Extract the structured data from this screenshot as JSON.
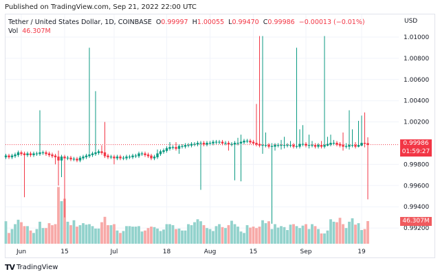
{
  "header": {
    "published": "Published on TradingView.com, Sep 21, 2022 22:00 UTC"
  },
  "legend": {
    "symbol": "Tether / United States Dollar, 1D, COINBASE",
    "o_label": "O",
    "o": "0.99997",
    "h_label": "H",
    "h": "1.00055",
    "l_label": "L",
    "l": "0.99470",
    "c_label": "C",
    "c": "0.99986",
    "change": "−0.00013 (−0.01%)",
    "vol_label": "Vol",
    "vol": "46.307M"
  },
  "price_axis": {
    "currency": "USD",
    "last_price": "0.99986",
    "countdown": "01:59:27",
    "last_volume": "46.307M"
  },
  "footer": {
    "brand": "TradingView"
  },
  "colors": {
    "up": "#089981",
    "down": "#f23645",
    "up_volume": "#92d2cc",
    "down_volume": "#f7a9a7",
    "grid": "#f0f3fa",
    "last_price_line": "#f23645"
  },
  "chart_data": {
    "type": "candlestick",
    "title": "Tether / United States Dollar, 1D, COINBASE",
    "first_date": "2022-05-27",
    "last_date": "2022-09-21",
    "ylim": [
      0.9912,
      1.0118
    ],
    "y_ticks": [
      "1.01000",
      "1.00800",
      "1.00600",
      "1.00400",
      "1.00200",
      "0.99800",
      "0.99600",
      "0.99400",
      "0.99200"
    ],
    "x_ticks": [
      {
        "label": "Jun",
        "date": "2022-06-01"
      },
      {
        "label": "15",
        "date": "2022-06-15"
      },
      {
        "label": "Jul",
        "date": "2022-07-01"
      },
      {
        "label": "18",
        "date": "2022-07-18"
      },
      {
        "label": "Aug",
        "date": "2022-08-01"
      },
      {
        "label": "15",
        "date": "2022-08-15"
      },
      {
        "label": "Sep",
        "date": "2022-09-01"
      },
      {
        "label": "19",
        "date": "2022-09-19"
      }
    ],
    "grid": true,
    "open": [
      0.9987,
      0.9988,
      0.9987,
      0.9988,
      0.9989,
      0.9991,
      0.999,
      0.9989,
      0.999,
      0.9989,
      0.999,
      0.999,
      0.9991,
      0.9991,
      0.999,
      0.9989,
      0.9988,
      0.9987,
      0.9984,
      0.9987,
      0.9986,
      0.9986,
      0.9985,
      0.9985,
      0.9984,
      0.9986,
      0.9987,
      0.9988,
      0.9989,
      0.999,
      0.9991,
      0.9992,
      0.9991,
      0.9988,
      0.9987,
      0.9987,
      0.9986,
      0.9987,
      0.9986,
      0.9986,
      0.9987,
      0.9987,
      0.9988,
      0.9988,
      0.999,
      0.999,
      0.9989,
      0.9988,
      0.9986,
      0.9987,
      0.999,
      0.9992,
      0.9993,
      0.9995,
      0.9996,
      0.9996,
      0.9995,
      0.9997,
      0.9997,
      0.9998,
      0.9998,
      0.9999,
      0.9999,
      1.0,
      1.0,
      0.9999,
      1.0,
      1.0,
      1.0001,
      1.0001,
      1.0001,
      1.0,
      1.0,
      0.9999,
      0.9999,
      1.0,
      1.0,
      1.0001,
      1.0002,
      1.0002,
      1.0001,
      1.0,
      0.9999,
      0.9998,
      0.9998,
      0.9998,
      0.9997,
      0.9997,
      0.9998,
      0.9998,
      0.9998,
      0.9998,
      0.9998,
      0.9998,
      0.9997,
      0.9997,
      0.9999,
      0.9999,
      0.9998,
      0.9998,
      0.9998,
      0.9997,
      0.9998,
      0.9997,
      0.9998,
      0.9999,
      1.0,
      1.0,
      0.9999,
      0.9998,
      0.9997,
      0.9997,
      0.9998,
      0.9998,
      0.9997,
      0.9998,
      1.0,
      0.99997
    ],
    "high": [
      0.999,
      0.999,
      0.999,
      0.9991,
      0.9993,
      0.9993,
      0.9992,
      0.9992,
      0.9992,
      0.9992,
      0.9992,
      1.0031,
      0.9993,
      0.9993,
      0.9992,
      0.9991,
      0.999,
      0.9993,
      0.9989,
      0.9989,
      0.9988,
      0.9988,
      0.9987,
      0.9987,
      0.9988,
      0.9989,
      0.999,
      1.009,
      0.9992,
      1.0049,
      0.9994,
      0.9998,
      1.002,
      0.999,
      0.9989,
      0.9989,
      0.9989,
      0.9989,
      0.9988,
      0.9989,
      0.9989,
      0.999,
      0.999,
      0.9992,
      0.9992,
      0.9992,
      0.9991,
      0.999,
      0.9989,
      0.9994,
      0.9994,
      0.9995,
      0.9997,
      1.0001,
      0.9998,
      1.0001,
      0.9999,
      0.9999,
      1.0,
      1.0,
      1.0001,
      1.0001,
      1.0002,
      1.0002,
      1.0002,
      1.0002,
      1.0002,
      1.0003,
      1.0003,
      1.0003,
      1.0003,
      1.0002,
      1.0002,
      1.0001,
      1.0002,
      1.0005,
      1.0008,
      1.0004,
      1.0004,
      1.0004,
      1.0003,
      1.0037,
      1.0101,
      1.0101,
      1.001,
      1.0,
      1.0,
      1.0,
      1.0,
      1.0003,
      1.0006,
      1.0,
      1.0002,
      1.0,
      1.009,
      1.0013,
      1.0017,
      1.0001,
      1.0008,
      1.0002,
      1.0,
      1.0,
      1.0002,
      1.0101,
      1.0006,
      1.0008,
      1.0003,
      1.0002,
      1.0001,
      1.001,
      1.0,
      1.0031,
      1.0013,
      1.0001,
      1.0021,
      1.0026,
      1.0029,
      1.00055
    ],
    "low": [
      0.9985,
      0.9985,
      0.9985,
      0.9986,
      0.9987,
      0.9988,
      0.9949,
      0.9987,
      0.9987,
      0.9987,
      0.9988,
      0.9988,
      0.9989,
      0.9988,
      0.9987,
      0.9986,
      0.998,
      0.996,
      0.9968,
      0.993,
      0.9984,
      0.9983,
      0.9983,
      0.9982,
      0.9982,
      0.9984,
      0.9985,
      0.9986,
      0.9987,
      0.9988,
      0.9989,
      0.9989,
      0.9986,
      0.9985,
      0.9985,
      0.998,
      0.9984,
      0.9984,
      0.9984,
      0.9984,
      0.9985,
      0.9985,
      0.9986,
      0.9986,
      0.9988,
      0.9987,
      0.9986,
      0.9984,
      0.9984,
      0.9985,
      0.9988,
      0.999,
      0.9991,
      0.9993,
      0.9994,
      0.9993,
      0.999,
      0.9995,
      0.9995,
      0.9996,
      0.9996,
      0.9997,
      0.9997,
      0.9956,
      0.9997,
      0.9997,
      0.9998,
      0.9998,
      0.9999,
      0.9999,
      0.9998,
      0.9998,
      0.9993,
      0.9997,
      0.9965,
      0.9998,
      0.9964,
      0.9999,
      1.0,
      0.9999,
      0.9998,
      0.9997,
      0.9996,
      0.999,
      0.9996,
      0.9995,
      0.9924,
      0.9993,
      0.9996,
      0.9994,
      0.9995,
      0.9996,
      0.9996,
      0.9995,
      0.9995,
      0.9995,
      0.9997,
      0.9996,
      0.9995,
      0.9996,
      0.9995,
      0.9995,
      0.9995,
      0.9995,
      0.9997,
      0.9997,
      0.9998,
      0.9997,
      0.9996,
      0.9993,
      0.9995,
      0.9994,
      0.9996,
      0.9995,
      0.9996,
      0.9997,
      0.9996,
      0.9947
    ],
    "close": [
      0.9988,
      0.9987,
      0.9988,
      0.9989,
      0.9991,
      0.999,
      0.9989,
      0.999,
      0.9989,
      0.999,
      0.999,
      0.9991,
      0.9991,
      0.999,
      0.9989,
      0.9988,
      0.9987,
      0.9984,
      0.9987,
      0.9986,
      0.9986,
      0.9985,
      0.9985,
      0.9984,
      0.9986,
      0.9987,
      0.9988,
      0.9989,
      0.999,
      0.9991,
      0.9992,
      0.9991,
      0.9988,
      0.9987,
      0.9987,
      0.9986,
      0.9987,
      0.9986,
      0.9986,
      0.9987,
      0.9987,
      0.9988,
      0.9988,
      0.999,
      0.999,
      0.9989,
      0.9988,
      0.9986,
      0.9987,
      0.999,
      0.9992,
      0.9993,
      0.9995,
      0.9996,
      0.9996,
      0.9995,
      0.9997,
      0.9997,
      0.9998,
      0.9998,
      0.9999,
      0.9999,
      1.0,
      1.0,
      0.9999,
      1.0,
      1.0,
      1.0001,
      1.0001,
      1.0001,
      1.0,
      1.0,
      0.9999,
      0.9999,
      1.0,
      1.0,
      1.0001,
      1.0002,
      1.0002,
      1.0001,
      1.0,
      0.9999,
      0.9998,
      0.9998,
      0.9998,
      0.9997,
      0.9997,
      0.9998,
      0.9998,
      0.9998,
      0.9998,
      0.9998,
      0.9998,
      0.9997,
      0.9997,
      0.9999,
      0.9999,
      0.9998,
      0.9998,
      0.9998,
      0.9997,
      0.9998,
      0.9997,
      0.9998,
      0.9999,
      1.0,
      1.0,
      0.9999,
      0.9998,
      0.9997,
      0.9997,
      0.9998,
      0.9998,
      0.9997,
      0.9998,
      1.0,
      0.99997,
      0.99986
    ],
    "volume_millions": [
      46,
      22,
      30,
      40,
      49,
      44,
      36,
      36,
      27,
      22,
      30,
      45,
      32,
      32,
      42,
      38,
      40,
      116,
      87,
      92,
      45,
      38,
      48,
      35,
      38,
      42,
      39,
      40,
      36,
      31,
      31,
      44,
      55,
      38,
      38,
      40,
      27,
      22,
      26,
      36,
      36,
      35,
      35,
      36,
      25,
      27,
      32,
      35,
      34,
      31,
      26,
      29,
      40,
      40,
      38,
      30,
      31,
      27,
      27,
      40,
      38,
      44,
      50,
      46,
      38,
      32,
      30,
      26,
      36,
      40,
      34,
      32,
      38,
      47,
      40,
      35,
      25,
      22,
      38,
      33,
      35,
      32,
      35,
      48,
      42,
      46,
      30,
      40,
      33,
      36,
      34,
      28,
      39,
      40,
      36,
      32,
      37,
      40,
      30,
      40,
      36,
      30,
      21,
      21,
      27,
      50,
      45,
      44,
      53,
      40,
      32,
      45,
      52,
      39,
      42,
      28,
      30,
      46.307
    ]
  }
}
